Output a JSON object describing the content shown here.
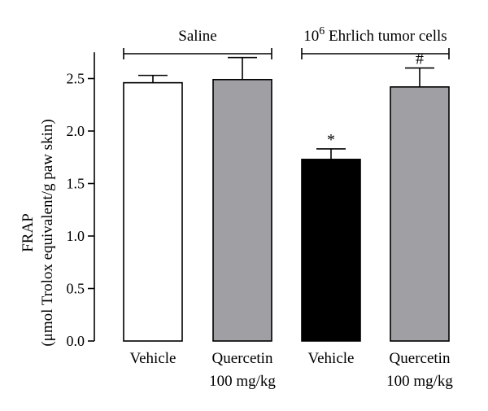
{
  "chart_data": {
    "type": "bar",
    "ylabel_line1": "FRAP",
    "ylabel_line2": "(μmol Trolox equivalent/g paw skin)",
    "ylim": [
      0,
      2.75
    ],
    "yticks": [
      "0.0",
      "0.5",
      "1.0",
      "1.5",
      "2.0",
      "2.5"
    ],
    "categories": [
      {
        "line1": "Vehicle",
        "line2": ""
      },
      {
        "line1": "Quercetin",
        "line2": "100 mg/kg"
      },
      {
        "line1": "Vehicle",
        "line2": ""
      },
      {
        "line1": "Quercetin",
        "line2": "100 mg/kg"
      }
    ],
    "values": [
      2.46,
      2.49,
      1.73,
      2.42
    ],
    "errors": [
      0.07,
      0.21,
      0.1,
      0.18
    ],
    "bar_colors": [
      "#ffffff",
      "#a0a0a4",
      "#000000",
      "#a0a0a4"
    ],
    "annotations": [
      "",
      "",
      "*",
      "#"
    ],
    "groups": [
      {
        "label": "Saline",
        "label_sup": "",
        "bars": [
          0,
          1
        ]
      },
      {
        "label_prefix": "10",
        "label_sup": "6",
        "label": " Ehrlich tumor cells",
        "bars": [
          2,
          3
        ]
      }
    ]
  }
}
